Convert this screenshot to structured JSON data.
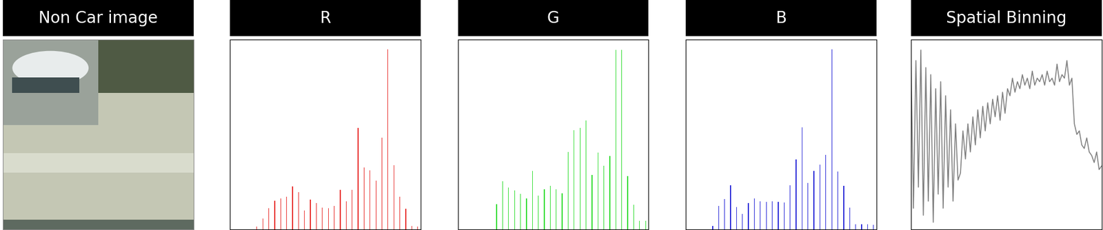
{
  "image": {
    "title": "Non Car image"
  },
  "chart_data": [
    {
      "type": "histogram",
      "title": "R",
      "color": "#e8302e",
      "tick_labels": false,
      "bins": [
        0,
        8,
        16,
        24,
        32,
        40,
        48,
        56,
        64,
        72,
        80,
        88,
        96,
        104,
        112,
        120,
        128,
        136,
        144,
        152,
        160,
        168,
        176,
        184,
        192,
        200,
        208,
        216,
        224,
        232,
        240,
        248,
        256
      ],
      "values": [
        0,
        0,
        0,
        0,
        4,
        15,
        30,
        41,
        44,
        46,
        61,
        53,
        27,
        42,
        37,
        31,
        30,
        33,
        56,
        40,
        56,
        144,
        88,
        84,
        69,
        130,
        256,
        91,
        46,
        29,
        5,
        4
      ],
      "xlim": [
        0,
        256
      ],
      "ylim": [
        0,
        270
      ]
    },
    {
      "type": "histogram",
      "title": "G",
      "color": "#33dd33",
      "tick_labels": false,
      "bins": [
        0,
        8,
        16,
        24,
        32,
        40,
        48,
        56,
        64,
        72,
        80,
        88,
        96,
        104,
        112,
        120,
        128,
        136,
        144,
        152,
        160,
        168,
        176,
        184,
        192,
        200,
        208,
        216,
        224,
        232,
        240,
        248,
        256
      ],
      "values": [
        0,
        0,
        0,
        0,
        0,
        0,
        36,
        68,
        59,
        55,
        50,
        44,
        83,
        48,
        57,
        62,
        57,
        51,
        110,
        141,
        144,
        155,
        77,
        109,
        90,
        104,
        255,
        255,
        76,
        35,
        12,
        12
      ],
      "xlim": [
        0,
        256
      ],
      "ylim": [
        0,
        270
      ]
    },
    {
      "type": "histogram",
      "title": "B",
      "color": "#2a2ad8",
      "tick_labels": false,
      "bins": [
        0,
        8,
        16,
        24,
        32,
        40,
        48,
        56,
        64,
        72,
        80,
        88,
        96,
        104,
        112,
        120,
        128,
        136,
        144,
        152,
        160,
        168,
        176,
        184,
        192,
        200,
        208,
        216,
        224,
        232,
        240,
        248,
        256
      ],
      "values": [
        0,
        0,
        0,
        0,
        5,
        33,
        43,
        63,
        32,
        22,
        37,
        44,
        40,
        39,
        40,
        39,
        38,
        63,
        99,
        145,
        66,
        83,
        92,
        106,
        256,
        82,
        62,
        31,
        7,
        7,
        7,
        6
      ],
      "xlim": [
        0,
        256
      ],
      "ylim": [
        0,
        270
      ]
    },
    {
      "type": "line",
      "title": "Spatial Binning",
      "color": "#808080",
      "tick_labels": false,
      "values": [
        250,
        30,
        240,
        60,
        255,
        20,
        230,
        40,
        220,
        10,
        200,
        50,
        210,
        30,
        190,
        60,
        170,
        40,
        150,
        70,
        80,
        140,
        100,
        150,
        110,
        160,
        120,
        170,
        130,
        175,
        140,
        180,
        150,
        185,
        160,
        190,
        155,
        195,
        165,
        200,
        190,
        215,
        195,
        210,
        200,
        220,
        205,
        215,
        200,
        225,
        205,
        215,
        210,
        220,
        205,
        225,
        210,
        215,
        205,
        235,
        210,
        220,
        215,
        240,
        205,
        215,
        150,
        135,
        140,
        120,
        115,
        130,
        110,
        105,
        95,
        110,
        85,
        90
      ],
      "xlim": [
        0,
        77
      ],
      "ylim": [
        0,
        270
      ]
    }
  ]
}
